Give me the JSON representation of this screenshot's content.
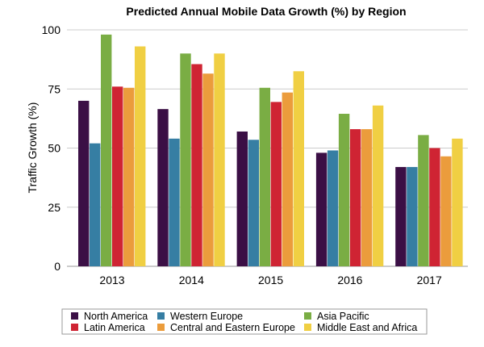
{
  "chart_data": {
    "type": "bar",
    "title": "Predicted Annual Mobile Data Growth (%) by Region",
    "xlabel": "",
    "ylabel": "Traffic Growth (%)",
    "ylim": [
      0,
      100
    ],
    "yticks": [
      "0",
      "25",
      "50",
      "75",
      "100"
    ],
    "grid": true,
    "legend": "bottom",
    "categories": [
      "2013",
      "2014",
      "2015",
      "2016",
      "2017"
    ],
    "series": [
      {
        "name": "North America",
        "color": "#3b0f45",
        "values": [
          70,
          66.5,
          57,
          48,
          42
        ]
      },
      {
        "name": "Western Europe",
        "color": "#367ea3",
        "values": [
          52,
          54,
          53.5,
          49,
          42
        ]
      },
      {
        "name": "Asia Pacific",
        "color": "#7aad44",
        "values": [
          98,
          90,
          75.5,
          64.5,
          55.5
        ]
      },
      {
        "name": "Latin America",
        "color": "#cf2433",
        "values": [
          76,
          85.5,
          69.5,
          58,
          50
        ]
      },
      {
        "name": "Central and Eastern Europe",
        "color": "#eb9c3c",
        "values": [
          75.5,
          81.5,
          73.5,
          58,
          46.5
        ]
      },
      {
        "name": "Middle East and Africa",
        "color": "#f0cf43",
        "values": [
          93,
          90,
          82.5,
          68,
          54
        ]
      }
    ]
  }
}
